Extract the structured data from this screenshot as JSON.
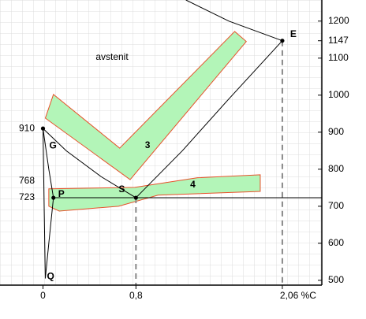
{
  "chart_data": {
    "type": "line",
    "text": "avstenit",
    "xlim": [
      -0.37,
      2.4
    ],
    "ylim": [
      487,
      1257
    ],
    "xticks": [
      0,
      {
        "value": 0.8,
        "label": "0,8"
      },
      {
        "value": 2.06,
        "label": "2,06 %C"
      }
    ],
    "yticks": [
      500,
      600,
      700,
      800,
      900,
      1000,
      1100,
      1147,
      1200
    ],
    "left_ticks": [
      910,
      768,
      723
    ],
    "grid": true,
    "series": [
      {
        "color": "#000000",
        "x": [
          0,
          0.2,
          0.5,
          0.8
        ],
        "values": [
          910,
          850,
          780,
          723
        ]
      },
      {
        "color": "#000000",
        "x": [
          0.8,
          1.2,
          1.6,
          2.06
        ],
        "values": [
          723,
          850,
          990,
          1147
        ]
      },
      {
        "color": "#000000",
        "x": [
          1.23,
          1.6,
          2.06
        ],
        "values": [
          1257,
          1200,
          1147
        ]
      },
      {
        "color": "#000000",
        "x": [
          0.09,
          2.4
        ],
        "values": [
          723,
          723
        ]
      },
      {
        "color": "#000000",
        "x": [
          0,
          0.05,
          0.09
        ],
        "values": [
          910,
          800,
          723
        ]
      },
      {
        "color": "#000000",
        "x": [
          0.09,
          0.05,
          0.02
        ],
        "values": [
          723,
          600,
          505
        ]
      },
      {
        "color": "#000000",
        "x": [
          0,
          0.01,
          0.02
        ],
        "values": [
          910,
          700,
          505
        ]
      }
    ],
    "regions": [
      {
        "label": "3",
        "label_x": 0.9,
        "label_y": 864,
        "color": "#b3f5b8",
        "x": [
          0.09,
          0.66,
          1.65,
          1.75,
          0.75,
          0.02
        ],
        "values": [
          1002,
          857,
          1172,
          1145,
          772,
          938
        ]
      },
      {
        "label": "4",
        "label_x": 1.29,
        "label_y": 757,
        "color": "#b3f5b8",
        "x": [
          0.05,
          0.79,
          1.33,
          1.87,
          1.87,
          0.99,
          0.65,
          0.14,
          0.05
        ],
        "values": [
          747,
          751,
          777,
          785,
          740,
          730,
          700,
          687,
          700
        ]
      }
    ],
    "points": [
      {
        "label": "E",
        "x": 2.06,
        "y": 1147
      },
      {
        "label": "G",
        "x": 0,
        "y": 910
      },
      {
        "label": "P",
        "x": 0.09,
        "y": 723
      },
      {
        "label": "S",
        "x": 0.8,
        "y": 723
      }
    ],
    "point_q": {
      "label": "Q",
      "x": 0.02,
      "y": 505
    }
  }
}
